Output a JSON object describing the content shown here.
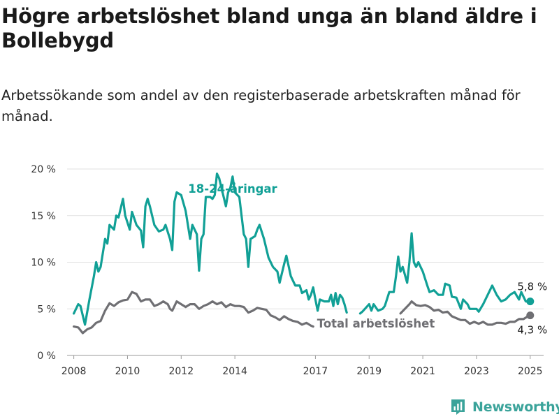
{
  "title": "Högre arbetslöshet bland unga än bland äldre i Bollebygd",
  "subtitle": "Arbetssökande som andel av den registerbaserade arbetskraften månad för månad.",
  "brand": {
    "name": "Newsworthy",
    "color": "#3aa39a"
  },
  "chart_data": {
    "type": "line",
    "ylim": [
      0,
      20
    ],
    "yticks": [
      0,
      5,
      10,
      15,
      20
    ],
    "ytick_labels": [
      "0 %",
      "5 %",
      "10 %",
      "15 %",
      "20 %"
    ],
    "xlim": [
      "2007-10",
      "2025-07"
    ],
    "xticks": [
      "2008-01",
      "2010-01",
      "2012-01",
      "2014-01",
      "2017-01",
      "2019-01",
      "2021-01",
      "2023-01",
      "2025-01"
    ],
    "xtick_labels": [
      "2008",
      "2010",
      "2012",
      "2014",
      "2017",
      "2019",
      "2021",
      "2023",
      "2025"
    ],
    "grid": true,
    "series": [
      {
        "name": "18-24-åringar",
        "color": "#11a096",
        "end_label": "5,8 %",
        "points": [
          [
            "2008-01",
            4.5
          ],
          [
            "2008-03",
            5.5
          ],
          [
            "2008-04",
            5.3
          ],
          [
            "2008-06",
            3.3
          ],
          [
            "2008-08",
            6.0
          ],
          [
            "2008-10",
            8.5
          ],
          [
            "2008-11",
            10.0
          ],
          [
            "2008-12",
            9.0
          ],
          [
            "2009-01",
            9.5
          ],
          [
            "2009-03",
            12.5
          ],
          [
            "2009-04",
            12.0
          ],
          [
            "2009-05",
            14.0
          ],
          [
            "2009-07",
            13.5
          ],
          [
            "2009-08",
            15.0
          ],
          [
            "2009-09",
            14.8
          ],
          [
            "2009-10",
            15.8
          ],
          [
            "2009-11",
            16.8
          ],
          [
            "2009-12",
            15.0
          ],
          [
            "2010-02",
            13.5
          ],
          [
            "2010-03",
            15.4
          ],
          [
            "2010-05",
            14.0
          ],
          [
            "2010-07",
            13.4
          ],
          [
            "2010-08",
            11.6
          ],
          [
            "2010-09",
            16.0
          ],
          [
            "2010-10",
            16.8
          ],
          [
            "2010-11",
            16.0
          ],
          [
            "2011-01",
            14.0
          ],
          [
            "2011-03",
            13.3
          ],
          [
            "2011-05",
            13.5
          ],
          [
            "2011-06",
            14.0
          ],
          [
            "2011-08",
            12.5
          ],
          [
            "2011-09",
            11.3
          ],
          [
            "2011-10",
            16.5
          ],
          [
            "2011-11",
            17.5
          ],
          [
            "2012-01",
            17.2
          ],
          [
            "2012-03",
            15.5
          ],
          [
            "2012-05",
            12.5
          ],
          [
            "2012-06",
            14.0
          ],
          [
            "2012-08",
            13.0
          ],
          [
            "2012-09",
            9.1
          ],
          [
            "2012-10",
            12.5
          ],
          [
            "2012-11",
            13.0
          ],
          [
            "2012-12",
            17.0
          ],
          [
            "2013-02",
            17.0
          ],
          [
            "2013-03",
            16.8
          ],
          [
            "2013-04",
            17.2
          ],
          [
            "2013-05",
            19.5
          ],
          [
            "2013-06",
            19.0
          ],
          [
            "2013-08",
            17.0
          ],
          [
            "2013-09",
            16.0
          ],
          [
            "2013-10",
            17.5
          ],
          [
            "2013-11",
            18.0
          ],
          [
            "2013-12",
            19.2
          ],
          [
            "2014-01",
            17.5
          ],
          [
            "2014-03",
            17.0
          ],
          [
            "2014-04",
            15.0
          ],
          [
            "2014-05",
            13.0
          ],
          [
            "2014-06",
            12.5
          ],
          [
            "2014-07",
            9.5
          ],
          [
            "2014-08",
            12.5
          ],
          [
            "2014-10",
            12.8
          ],
          [
            "2014-11",
            13.5
          ],
          [
            "2014-12",
            14.0
          ],
          [
            "2015-02",
            12.5
          ],
          [
            "2015-04",
            10.5
          ],
          [
            "2015-06",
            9.5
          ],
          [
            "2015-08",
            9.0
          ],
          [
            "2015-09",
            7.8
          ],
          [
            "2015-11",
            9.8
          ],
          [
            "2015-12",
            10.7
          ],
          [
            "2016-02",
            8.5
          ],
          [
            "2016-04",
            7.5
          ],
          [
            "2016-06",
            7.5
          ],
          [
            "2016-07",
            6.7
          ],
          [
            "2016-09",
            7.0
          ],
          [
            "2016-10",
            6.0
          ],
          [
            "2016-11",
            6.5
          ],
          [
            "2016-12",
            7.3
          ],
          [
            "2017-01",
            6.0
          ],
          [
            "2017-02",
            4.8
          ],
          [
            "2017-03",
            6.0
          ],
          [
            "2017-05",
            5.8
          ],
          [
            "2017-07",
            5.8
          ],
          [
            "2017-08",
            6.5
          ],
          [
            "2017-09",
            5.3
          ],
          [
            "2017-10",
            6.7
          ],
          [
            "2017-11",
            5.5
          ],
          [
            "2017-12",
            6.5
          ],
          [
            "2018-01",
            6.2
          ],
          [
            "2018-02",
            5.5
          ],
          [
            "2018-03",
            4.6
          ],
          null,
          [
            "2018-09",
            4.5
          ],
          [
            "2018-10",
            4.7
          ],
          [
            "2019-01",
            5.5
          ],
          [
            "2019-02",
            4.8
          ],
          [
            "2019-03",
            5.5
          ],
          [
            "2019-05",
            4.8
          ],
          [
            "2019-07",
            5.0
          ],
          [
            "2019-08",
            5.3
          ],
          [
            "2019-10",
            6.8
          ],
          [
            "2019-12",
            6.8
          ],
          [
            "2020-01",
            8.5
          ],
          [
            "2020-02",
            10.6
          ],
          [
            "2020-03",
            9.0
          ],
          [
            "2020-04",
            9.5
          ],
          [
            "2020-06",
            7.8
          ],
          [
            "2020-07",
            10.0
          ],
          [
            "2020-08",
            13.1
          ],
          [
            "2020-09",
            10.0
          ],
          [
            "2020-10",
            9.5
          ],
          [
            "2020-11",
            10.0
          ],
          [
            "2021-01",
            9.0
          ],
          [
            "2021-03",
            7.5
          ],
          [
            "2021-04",
            6.8
          ],
          [
            "2021-06",
            7.0
          ],
          [
            "2021-08",
            6.5
          ],
          [
            "2021-10",
            6.5
          ],
          [
            "2021-11",
            7.7
          ],
          [
            "2022-01",
            7.5
          ],
          [
            "2022-02",
            6.3
          ],
          [
            "2022-04",
            6.2
          ],
          [
            "2022-06",
            5.0
          ],
          [
            "2022-07",
            6.0
          ],
          [
            "2022-09",
            5.5
          ],
          [
            "2022-10",
            5.0
          ],
          [
            "2022-11",
            5.0
          ],
          [
            "2023-01",
            5.0
          ],
          [
            "2023-02",
            4.7
          ],
          [
            "2023-04",
            5.5
          ],
          [
            "2023-06",
            6.5
          ],
          [
            "2023-08",
            7.5
          ],
          [
            "2023-10",
            6.5
          ],
          [
            "2023-12",
            5.8
          ],
          [
            "2024-02",
            6.0
          ],
          [
            "2024-04",
            6.5
          ],
          [
            "2024-06",
            6.8
          ],
          [
            "2024-08",
            6.0
          ],
          [
            "2024-09",
            6.8
          ],
          [
            "2024-11",
            5.8
          ],
          [
            "2025-01",
            5.8
          ]
        ]
      },
      {
        "name": "Total arbetslöshet",
        "color": "#6f6f73",
        "end_label": "4,3 %",
        "points": [
          [
            "2008-01",
            3.1
          ],
          [
            "2008-03",
            3.0
          ],
          [
            "2008-05",
            2.4
          ],
          [
            "2008-07",
            2.8
          ],
          [
            "2008-09",
            3.0
          ],
          [
            "2008-11",
            3.5
          ],
          [
            "2009-01",
            3.7
          ],
          [
            "2009-03",
            4.8
          ],
          [
            "2009-05",
            5.6
          ],
          [
            "2009-07",
            5.3
          ],
          [
            "2009-09",
            5.7
          ],
          [
            "2009-11",
            5.9
          ],
          [
            "2010-01",
            6.0
          ],
          [
            "2010-03",
            6.8
          ],
          [
            "2010-05",
            6.6
          ],
          [
            "2010-07",
            5.8
          ],
          [
            "2010-09",
            6.0
          ],
          [
            "2010-11",
            6.0
          ],
          [
            "2011-01",
            5.3
          ],
          [
            "2011-03",
            5.5
          ],
          [
            "2011-05",
            5.8
          ],
          [
            "2011-07",
            5.5
          ],
          [
            "2011-08",
            5.0
          ],
          [
            "2011-09",
            4.8
          ],
          [
            "2011-11",
            5.8
          ],
          [
            "2012-01",
            5.5
          ],
          [
            "2012-03",
            5.2
          ],
          [
            "2012-05",
            5.5
          ],
          [
            "2012-07",
            5.5
          ],
          [
            "2012-09",
            5.0
          ],
          [
            "2012-11",
            5.3
          ],
          [
            "2013-01",
            5.5
          ],
          [
            "2013-03",
            5.8
          ],
          [
            "2013-05",
            5.5
          ],
          [
            "2013-07",
            5.7
          ],
          [
            "2013-09",
            5.2
          ],
          [
            "2013-11",
            5.5
          ],
          [
            "2014-01",
            5.3
          ],
          [
            "2014-03",
            5.3
          ],
          [
            "2014-05",
            5.2
          ],
          [
            "2014-07",
            4.6
          ],
          [
            "2014-09",
            4.8
          ],
          [
            "2014-11",
            5.1
          ],
          [
            "2015-01",
            5.0
          ],
          [
            "2015-03",
            4.9
          ],
          [
            "2015-05",
            4.3
          ],
          [
            "2015-07",
            4.1
          ],
          [
            "2015-09",
            3.8
          ],
          [
            "2015-11",
            4.2
          ],
          [
            "2016-01",
            3.9
          ],
          [
            "2016-03",
            3.7
          ],
          [
            "2016-05",
            3.6
          ],
          [
            "2016-07",
            3.3
          ],
          [
            "2016-09",
            3.5
          ],
          [
            "2016-11",
            3.2
          ],
          [
            "2016-12",
            3.1
          ],
          null,
          [
            "2018-10",
            3.6
          ],
          [
            "2019-01",
            3.9
          ],
          [
            "2019-03",
            3.6
          ],
          null,
          [
            "2020-03",
            4.5
          ],
          [
            "2020-05",
            5.0
          ],
          [
            "2020-07",
            5.5
          ],
          [
            "2020-08",
            5.8
          ],
          [
            "2020-10",
            5.4
          ],
          [
            "2020-12",
            5.3
          ],
          [
            "2021-02",
            5.4
          ],
          [
            "2021-04",
            5.2
          ],
          [
            "2021-06",
            4.8
          ],
          [
            "2021-08",
            4.9
          ],
          [
            "2021-10",
            4.6
          ],
          [
            "2021-12",
            4.7
          ],
          [
            "2022-02",
            4.2
          ],
          [
            "2022-04",
            4.0
          ],
          [
            "2022-06",
            3.8
          ],
          [
            "2022-08",
            3.8
          ],
          [
            "2022-10",
            3.4
          ],
          [
            "2022-12",
            3.6
          ],
          [
            "2023-02",
            3.4
          ],
          [
            "2023-04",
            3.6
          ],
          [
            "2023-06",
            3.3
          ],
          [
            "2023-08",
            3.3
          ],
          [
            "2023-10",
            3.5
          ],
          [
            "2023-12",
            3.5
          ],
          [
            "2024-02",
            3.4
          ],
          [
            "2024-04",
            3.6
          ],
          [
            "2024-06",
            3.6
          ],
          [
            "2024-08",
            3.9
          ],
          [
            "2024-10",
            3.9
          ],
          [
            "2024-12",
            4.2
          ],
          [
            "2025-01",
            4.3
          ]
        ]
      }
    ]
  }
}
